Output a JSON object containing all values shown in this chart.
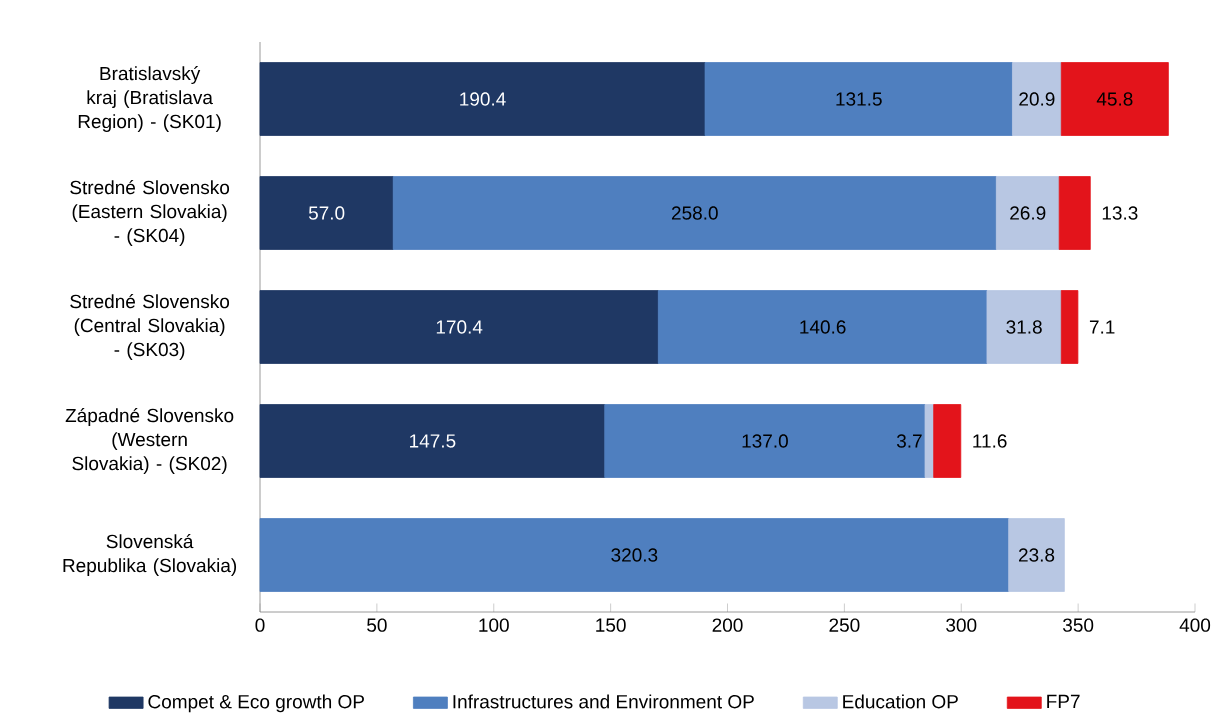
{
  "chart_data": {
    "type": "bar",
    "orientation": "horizontal",
    "stacked": true,
    "categories": [
      "Bratislavský kraj (Bratislava Region) - (SK01)",
      "Stredné Slovensko (Eastern Slovakia) - (SK04)",
      "Stredné Slovensko (Central Slovakia) - (SK03)",
      "Západné Slovensko (Western Slovakia) - (SK02)",
      "Slovenská Republika (Slovakia)"
    ],
    "series": [
      {
        "name": "Compet & Eco growth OP",
        "color": "#1f3864",
        "values": [
          190.4,
          57.0,
          170.4,
          147.5,
          null
        ],
        "value_labels": [
          "190.4",
          "57.0",
          "170.4",
          "147.5",
          null
        ]
      },
      {
        "name": "Infrastructures and Environment OP",
        "color": "#4f7fbf",
        "values": [
          131.5,
          258.0,
          140.6,
          137.0,
          320.3
        ],
        "value_labels": [
          "131.5",
          "258.0",
          "140.6",
          "137.0",
          "320.3"
        ]
      },
      {
        "name": "Education OP",
        "color": "#b8c7e3",
        "values": [
          20.9,
          26.9,
          31.8,
          3.7,
          23.8
        ],
        "value_labels": [
          "20.9",
          "26.9",
          "31.8",
          "3.7",
          "23.8"
        ]
      },
      {
        "name": "FP7",
        "color": "#e3141b",
        "values": [
          45.8,
          13.3,
          7.1,
          11.6,
          null
        ],
        "value_labels": [
          "45.8",
          "13.3",
          "7.1",
          "11.6",
          null
        ]
      }
    ],
    "xlim": [
      0,
      400
    ],
    "xticks": [
      0,
      50,
      100,
      150,
      200,
      250,
      300,
      350,
      400
    ],
    "grid": false,
    "legend": "bottom"
  }
}
